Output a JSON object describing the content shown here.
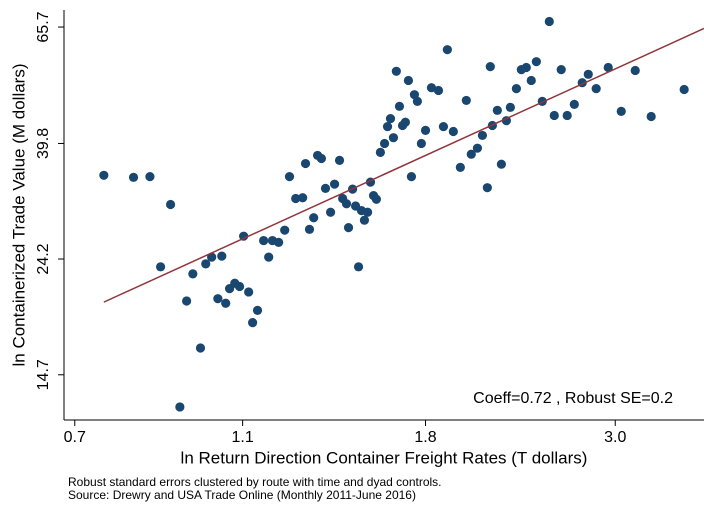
{
  "chart_data": {
    "type": "scatter",
    "x_label": "ln Return Direction Container Freight Rates (T dollars)",
    "y_label": "ln Containerized Trade Value (M dollars)",
    "annotation": "Coeff=0.72 , Robust SE=0.2",
    "notes": [
      "Robust standard errors clustered by route with time and dyad controls.",
      "Source: Drewry and USA Trade Online (Monthly 2011-June 2016)"
    ],
    "x_log": true,
    "y_log": true,
    "xlim": [
      0.68,
      3.81
    ],
    "ylim": [
      12.1,
      70.7
    ],
    "xticks": [
      0.7,
      1.1,
      1.8,
      {
        "value": 3,
        "label": "3.0"
      }
    ],
    "yticks": [
      14.7,
      24.2,
      39.8,
      65.7
    ],
    "series": [
      {
        "color": "#1a476f",
        "x": [
          0.757,
          0.82,
          0.857,
          0.906,
          0.882,
          0.929,
          0.946,
          0.962,
          0.982,
          0.996,
          1.012,
          1.029,
          1.04,
          1.051,
          1.062,
          1.077,
          1.091,
          1.103,
          1.118,
          1.13,
          1.145,
          1.164,
          1.18,
          1.192,
          1.212,
          1.232,
          1.248,
          1.269,
          1.293,
          1.303,
          1.317,
          1.332,
          1.346,
          1.36,
          1.375,
          1.394,
          1.409,
          1.428,
          1.44,
          1.455,
          1.463,
          1.479,
          1.491,
          1.503,
          1.515,
          1.527,
          1.54,
          1.552,
          1.565,
          1.577,
          1.594,
          1.612,
          1.625,
          1.638,
          1.651,
          1.664,
          1.678,
          1.692,
          1.705,
          1.719,
          1.733,
          1.747,
          1.761,
          1.78,
          1.8,
          1.829,
          1.864,
          1.889,
          1.909,
          1.94,
          1.977,
          2.009,
          2.036,
          2.07,
          2.098,
          2.126,
          2.143,
          2.155,
          2.184,
          2.208,
          2.238,
          2.262,
          2.299,
          2.33,
          2.361,
          2.393,
          2.426,
          2.465,
          2.512,
          2.546,
          2.594,
          2.636,
          2.687,
          2.745,
          2.79,
          2.85,
          2.944,
          3.049,
          3.166,
          3.305,
          3.612
        ],
        "values": [
          34.7,
          34.4,
          34.5,
          30.6,
          23.4,
          12.8,
          20.2,
          22.7,
          16.5,
          23.7,
          24.4,
          20.4,
          24.5,
          20.0,
          21.3,
          21.8,
          21.5,
          26.7,
          21.0,
          18.4,
          19.4,
          26.2,
          24.4,
          26.2,
          26.0,
          27.4,
          34.5,
          31.4,
          31.5,
          36.5,
          27.5,
          28.9,
          37.8,
          37.3,
          32.8,
          29.6,
          33.4,
          37.0,
          31.4,
          30.7,
          27.7,
          32.7,
          30.4,
          23.4,
          29.8,
          28.6,
          29.6,
          33.7,
          31.8,
          31.3,
          38.3,
          39.8,
          42.8,
          44.3,
          40.8,
          54.3,
          46.7,
          43.0,
          43.6,
          52.2,
          34.5,
          49.1,
          47.7,
          39.8,
          42.1,
          50.6,
          50.0,
          42.8,
          59.6,
          41.9,
          35.9,
          47.9,
          38.0,
          39.0,
          41.2,
          32.9,
          55.4,
          43.0,
          45.9,
          36.4,
          43.9,
          46.5,
          50.4,
          54.7,
          55.2,
          52.2,
          56.6,
          47.7,
          67.3,
          44.9,
          54.7,
          44.9,
          47.1,
          51.7,
          53.6,
          50.4,
          55.2,
          45.7,
          54.5,
          44.7,
          50.2
        ]
      }
    ],
    "fit_line": {
      "color": "#90353b",
      "x": [
        0.757,
        3.81
      ],
      "values": [
        20.1,
        65.3
      ]
    }
  }
}
